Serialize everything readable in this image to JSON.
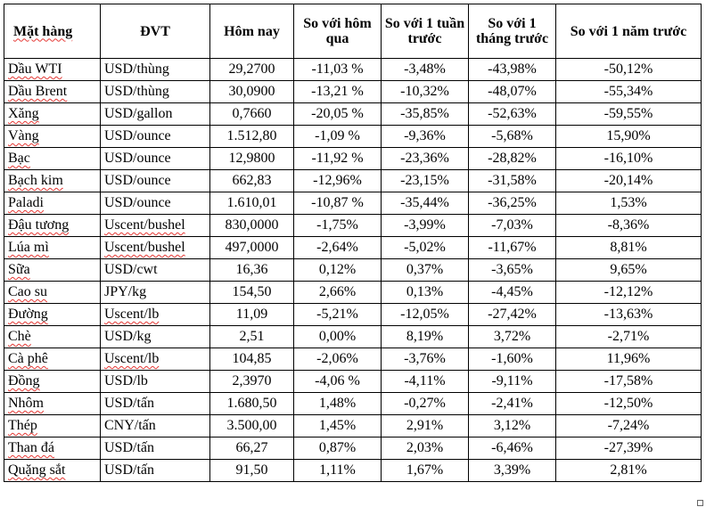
{
  "headers": [
    "Mặt hàng",
    "ĐVT",
    "Hôm nay",
    "So với hôm qua",
    "So với 1 tuần trước",
    "So với 1 tháng trước",
    "So với 1 năm trước"
  ],
  "rows": [
    [
      "Dầu WTI",
      "USD/thùng",
      "29,2700",
      "-11,03 %",
      "-3,48%",
      "-43,98%",
      "-50,12%"
    ],
    [
      "Dầu Brent",
      "USD/thùng",
      "30,0900",
      "-13,21 %",
      "-10,32%",
      "-48,07%",
      "-55,34%"
    ],
    [
      "Xăng",
      "USD/gallon",
      "0,7660",
      "-20,05 %",
      "-35,85%",
      "-52,63%",
      "-59,55%"
    ],
    [
      "Vàng",
      "USD/ounce",
      "1.512,80",
      "-1,09 %",
      "-9,36%",
      "-5,68%",
      "15,90%"
    ],
    [
      "Bạc",
      "USD/ounce",
      "12,9800",
      "-11,92 %",
      "-23,36%",
      "-28,82%",
      "-16,10%"
    ],
    [
      "Bạch kim",
      "USD/ounce",
      "662,83",
      "-12,96%",
      "-23,15%",
      "-31,58%",
      "-20,14%"
    ],
    [
      "Paladi",
      "USD/ounce",
      "1.610,01",
      "-10,87 %",
      "-35,44%",
      "-36,25%",
      "1,53%"
    ],
    [
      "Đậu tương",
      "Uscent/bushel",
      "830,0000",
      "-1,75%",
      "-3,99%",
      "-7,03%",
      "-8,36%"
    ],
    [
      "Lúa mì",
      "Uscent/bushel",
      "497,0000",
      "-2,64%",
      "-5,02%",
      "-11,67%",
      "8,81%"
    ],
    [
      "Sữa",
      "USD/cwt",
      "16,36",
      "0,12%",
      "0,37%",
      "-3,65%",
      "9,65%"
    ],
    [
      "Cao su",
      "JPY/kg",
      "154,50",
      "2,66%",
      "0,13%",
      "-4,45%",
      "-12,12%"
    ],
    [
      "Đường",
      "Uscent/lb",
      "11,09",
      "-5,21%",
      "-12,05%",
      "-27,42%",
      "-13,63%"
    ],
    [
      "Chè",
      "USD/kg",
      "2,51",
      "0,00%",
      "8,19%",
      "3,72%",
      "-2,71%"
    ],
    [
      "Cà phê",
      "Uscent/lb",
      "104,85",
      "-2,06%",
      "-3,76%",
      "-1,60%",
      "11,96%"
    ],
    [
      "Đồng",
      "USD/lb",
      "2,3970",
      "-4,06 %",
      "-4,11%",
      "-9,11%",
      "-17,58%"
    ],
    [
      "Nhôm",
      "USD/tấn",
      "1.680,50",
      "1,48%",
      "-0,27%",
      "-2,41%",
      "-12,50%"
    ],
    [
      "Thép",
      "CNY/tấn",
      "3.500,00",
      "1,45%",
      "2,91%",
      "3,12%",
      "-7,24%"
    ],
    [
      "Than đá",
      "USD/tấn",
      "66,27",
      "0,87%",
      "2,03%",
      "-6,46%",
      "-27,39%"
    ],
    [
      "Quặng sắt",
      "USD/tấn",
      "91,50",
      "1,11%",
      "1,67%",
      "3,39%",
      "2,81%"
    ]
  ],
  "colors": {
    "spellcheck_underline": "#e53935",
    "border": "#000000",
    "background": "#ffffff"
  }
}
